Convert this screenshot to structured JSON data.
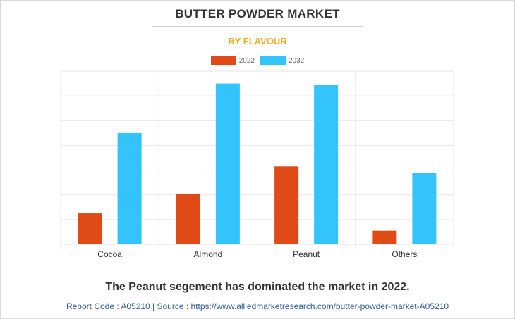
{
  "header": {
    "title": "BUTTER POWDER MARKET",
    "subtitle": "BY FLAVOUR"
  },
  "colors": {
    "subtitle": "#f5a623",
    "series_2022": "#e04a17",
    "series_2032": "#33c4fb",
    "grid": "#e6e6e6",
    "axis_label": "#333333"
  },
  "chart_data": {
    "type": "bar",
    "categories": [
      "Cocoa",
      "Almond",
      "Peanut",
      "Others"
    ],
    "series": [
      {
        "name": "2022",
        "values": [
          12.5,
          20.5,
          31.5,
          5.5
        ]
      },
      {
        "name": "2032",
        "values": [
          45,
          65,
          64.5,
          29
        ]
      }
    ],
    "ylim": [
      0,
      70
    ],
    "y_gridlines": [
      0,
      10,
      20,
      30,
      40,
      50,
      60,
      70
    ],
    "grid": true,
    "legend": "top-center",
    "xlabel": "",
    "ylabel": ""
  },
  "footer": {
    "insight": "The Peanut segement has dominated the market in 2022.",
    "source": "Report Code : A05210  |  Source : https://www.alliedmarketresearch.com/butter-powder-market-A05210"
  }
}
